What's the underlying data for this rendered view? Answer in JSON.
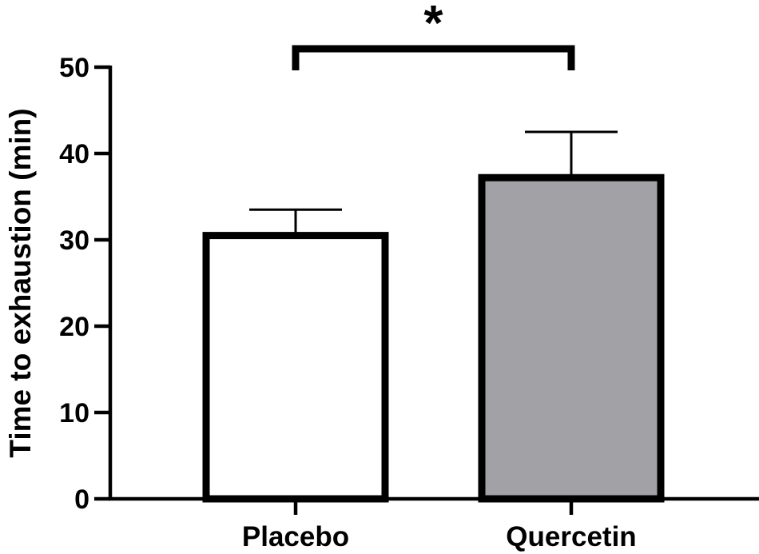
{
  "chart_data": {
    "type": "bar",
    "categories": [
      "Placebo",
      "Quercetin"
    ],
    "values": [
      30.5,
      37.2
    ],
    "errors": [
      3.0,
      5.3
    ],
    "ylabel": "Time to exhaustion (min)",
    "xlabel": "",
    "ylim": [
      0,
      50
    ],
    "yticks": [
      0,
      10,
      20,
      30,
      40,
      50
    ],
    "grid": false,
    "bar_colors": [
      "#ffffff",
      "#a2a2a6"
    ],
    "edge_color": "#000000",
    "significance": {
      "between": [
        0,
        1
      ],
      "label": "*"
    }
  }
}
